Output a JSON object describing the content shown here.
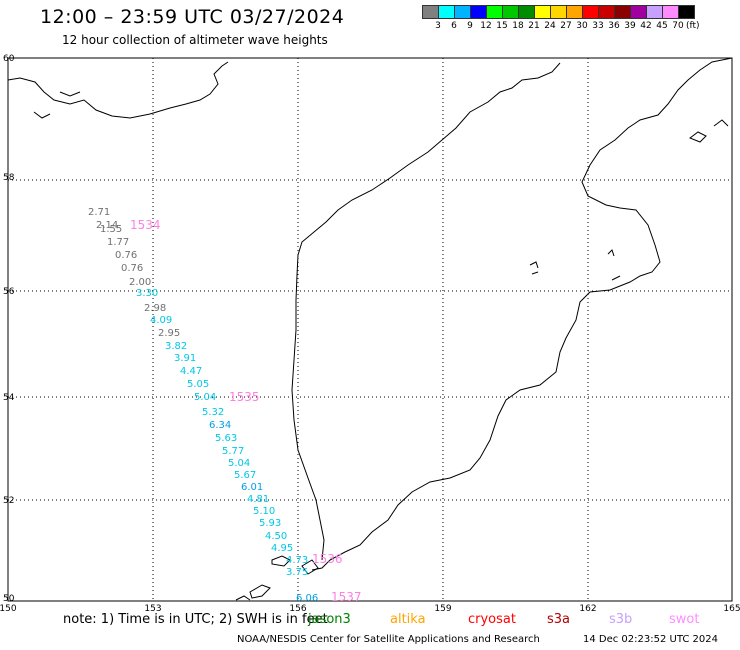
{
  "title": "12:00 – 23:59 UTC 03/27/2024",
  "subtitle": "12 hour collection of altimeter wave heights",
  "legend": {
    "colors": [
      "#808080",
      "#00ffff",
      "#00b4ff",
      "#0000ff",
      "#00ff00",
      "#00c800",
      "#008c00",
      "#ffff00",
      "#ffd700",
      "#ffa500",
      "#ff0000",
      "#c80000",
      "#8b0000",
      "#a000a0",
      "#c8a0ff",
      "#ff8cff",
      "#000000"
    ],
    "labels": [
      "3",
      "6",
      "9",
      "12",
      "15",
      "18",
      "21",
      "24",
      "27",
      "30",
      "33",
      "36",
      "39",
      "42",
      "45",
      "70"
    ],
    "unit": "(ft)"
  },
  "axes": {
    "x_ticks": [
      "150",
      "153",
      "156",
      "159",
      "162",
      "165"
    ],
    "y_ticks": [
      "60",
      "58",
      "56",
      "54",
      "52",
      "50"
    ]
  },
  "orbit_labels": [
    {
      "text": "1534",
      "color": "#ff80e0"
    },
    {
      "text": "1535",
      "color": "#ff80e0"
    },
    {
      "text": "1536",
      "color": "#ff80e0"
    },
    {
      "text": "1537",
      "color": "#ff80e0"
    }
  ],
  "wave_heights": [
    {
      "v": "2.71",
      "c": "#707070"
    },
    {
      "v": "2.14",
      "c": "#707070"
    },
    {
      "v": "1.55",
      "c": "#707070"
    },
    {
      "v": "1.77",
      "c": "#707070"
    },
    {
      "v": "0.76",
      "c": "#707070"
    },
    {
      "v": "0.76",
      "c": "#707070"
    },
    {
      "v": "2.00",
      "c": "#707070"
    },
    {
      "v": "3.30",
      "c": "#00c8e6"
    },
    {
      "v": "2.98",
      "c": "#707070"
    },
    {
      "v": "4.09",
      "c": "#00c8e6"
    },
    {
      "v": "2.95",
      "c": "#707070"
    },
    {
      "v": "3.82",
      "c": "#00c8e6"
    },
    {
      "v": "3.91",
      "c": "#00c8e6"
    },
    {
      "v": "4.47",
      "c": "#00c8e6"
    },
    {
      "v": "5.05",
      "c": "#00c8e6"
    },
    {
      "v": "5.04",
      "c": "#00c8e6"
    },
    {
      "v": "5.32",
      "c": "#00c8e6"
    },
    {
      "v": "6.34",
      "c": "#00a0e6"
    },
    {
      "v": "5.63",
      "c": "#00c8e6"
    },
    {
      "v": "5.77",
      "c": "#00c8e6"
    },
    {
      "v": "5.04",
      "c": "#00c8e6"
    },
    {
      "v": "5.67",
      "c": "#00c8e6"
    },
    {
      "v": "6.01",
      "c": "#00a0e6"
    },
    {
      "v": "4.81",
      "c": "#00c8e6"
    },
    {
      "v": "5.10",
      "c": "#00c8e6"
    },
    {
      "v": "5.93",
      "c": "#00c8e6"
    },
    {
      "v": "4.50",
      "c": "#00c8e6"
    },
    {
      "v": "4.95",
      "c": "#00c8e6"
    },
    {
      "v": "4.73",
      "c": "#00c8e6"
    },
    {
      "v": "3.75",
      "c": "#00c8e6"
    },
    {
      "v": "6.06",
      "c": "#00a0e6"
    }
  ],
  "note": "note:  1) Time is in UTC; 2) SWH is in feet",
  "satellites": [
    {
      "name": "jason3",
      "color": "#008000"
    },
    {
      "name": "altika",
      "color": "#ffa500"
    },
    {
      "name": "cryosat",
      "color": "#ff0000"
    },
    {
      "name": "s3a",
      "color": "#b40000"
    },
    {
      "name": "s3b",
      "color": "#c8a0ff"
    },
    {
      "name": "swot",
      "color": "#ff8cff"
    }
  ],
  "credit": "NOAA/NESDIS Center for Satellite Applications and Research",
  "generated": "14 Dec 02:23:52 UTC 2024"
}
